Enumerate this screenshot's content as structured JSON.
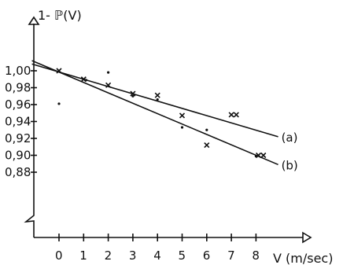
{
  "chart_data": {
    "type": "scatter",
    "title": "",
    "xlabel": "V (m/sec)",
    "ylabel": "1- ℙ(V)",
    "xlim": [
      -1.1,
      9.3
    ],
    "ylim": [
      0.87,
      1.015
    ],
    "y_axis_break": true,
    "grid": false,
    "x_ticks": [
      0,
      1,
      2,
      3,
      4,
      5,
      6,
      7,
      8
    ],
    "x_tick_labels": [
      "0",
      "1",
      "2",
      "3",
      "4",
      "5",
      "6",
      "7",
      "8"
    ],
    "y_ticks": [
      0.88,
      0.9,
      0.92,
      0.94,
      0.96,
      0.98,
      1.0
    ],
    "y_tick_labels": [
      "0,88",
      "0,90",
      "0,92",
      "0,94",
      "0,96",
      "0,98",
      "1,00"
    ],
    "series": [
      {
        "marker": "cross",
        "points": [
          [
            0,
            1.0
          ],
          [
            1,
            0.99
          ],
          [
            2,
            0.983
          ],
          [
            3,
            0.973
          ],
          [
            4,
            0.971
          ],
          [
            5,
            0.947
          ],
          [
            6,
            0.912
          ],
          [
            7.0,
            0.948
          ],
          [
            7.2,
            0.948
          ],
          [
            8.1,
            0.9
          ],
          [
            8.3,
            0.9
          ]
        ]
      },
      {
        "marker": "dot",
        "points": [
          [
            0,
            0.961
          ],
          [
            1.1,
            0.989
          ],
          [
            2,
            0.998
          ],
          [
            3,
            0.97
          ],
          [
            4,
            0.966
          ],
          [
            5,
            0.933
          ],
          [
            6,
            0.93
          ],
          [
            8.0,
            0.899
          ]
        ]
      }
    ],
    "fit_lines": [
      {
        "label": "(a)",
        "x": [
          -1.1,
          8.9
        ],
        "y": [
          1.008,
          0.922
        ]
      },
      {
        "label": "(b)",
        "x": [
          -1.1,
          8.9
        ],
        "y": [
          1.012,
          0.889
        ]
      }
    ]
  }
}
